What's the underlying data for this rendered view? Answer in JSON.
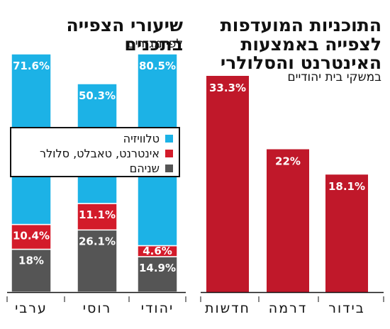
{
  "left_panel": {
    "title": "שיעורי הצפייה בתכנים",
    "subtitle": "לפי מגזרים"
  },
  "right_panel": {
    "title": "התוכניות המועדפות לצפייה באמצעות האינטרנט והסלולרי",
    "subtitle": "במשקי בית יהודיים"
  },
  "colors": {
    "tv": "#1cb2e6",
    "internet": "#d31b2a",
    "both": "#555555",
    "right_bars": "#c0182a"
  },
  "chart_data": [
    {
      "type": "bar",
      "stacked": true,
      "title": "שיעורי הצפייה בתכנים",
      "subtitle": "לפי מגזרים",
      "categories": [
        "ערבי",
        "רוסי",
        "יהודי"
      ],
      "series": [
        {
          "name": "שניהם",
          "values": [
            18,
            26.1,
            14.9
          ],
          "labels": [
            "18%",
            "26.1%",
            "14.9%"
          ]
        },
        {
          "name": "אינטרנט, טאבלט, סלולר",
          "values": [
            10.4,
            11.1,
            4.6
          ],
          "labels": [
            "10.4%",
            "11.1%",
            "4.6%"
          ]
        },
        {
          "name": "טלוויזיה",
          "values": [
            71.6,
            50.3,
            80.5
          ],
          "labels": [
            "71.6%",
            "50.3%",
            "80.5%"
          ]
        }
      ],
      "legend_position": "middle",
      "ylim": [
        0,
        100
      ]
    },
    {
      "type": "bar",
      "title": "התוכניות המועדפות לצפייה באמצעות האינטרנט והסלולרי",
      "subtitle": "במשקי בית יהודיים",
      "categories": [
        "חדשות",
        "דרמה",
        "בידור"
      ],
      "values": [
        33.3,
        22,
        18.1
      ],
      "labels": [
        "33.3%",
        "22%",
        "18.1%"
      ],
      "ylim": [
        0,
        33.3
      ]
    }
  ]
}
